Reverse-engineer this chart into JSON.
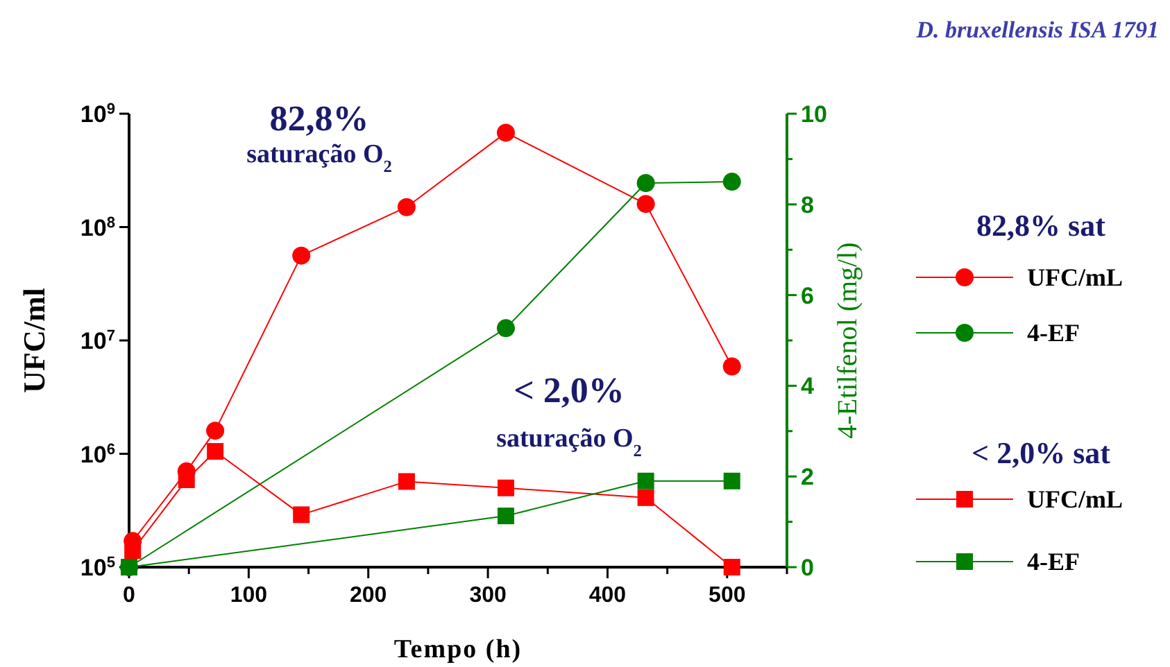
{
  "chart_data": {
    "type": "line",
    "title": "D. bruxellensis ISA 1791",
    "xlabel": "Tempo (h)",
    "ylabel": "UFC/ml",
    "y2label": "4-Etilfenol (mg/l)",
    "xlim": [
      0,
      550
    ],
    "xticks": [
      0,
      {
        "value": 50,
        "label": null
      },
      100,
      {
        "value": 150,
        "label": null
      },
      200,
      {
        "value": 250,
        "label": null
      },
      300,
      {
        "value": 350,
        "label": null
      },
      400,
      {
        "value": 450,
        "label": null
      },
      500,
      {
        "value": 550,
        "label": null
      }
    ],
    "log": "y",
    "ylim": [
      100000,
      1000000000
    ],
    "yticks": [
      {
        "value": 100000,
        "label": "10$^{5}$"
      },
      {
        "value": 1000000,
        "label": "10$^{6}$"
      },
      {
        "value": 10000000,
        "label": "10$^{7}$"
      },
      {
        "value": 100000000,
        "label": "10$^{8}$"
      },
      {
        "value": 1000000000,
        "label": "10$^{9}$"
      }
    ],
    "y2lim": [
      0,
      10
    ],
    "y2ticks": [
      0,
      {
        "value": 1,
        "label": null
      },
      2,
      {
        "value": 3,
        "label": null
      },
      4,
      {
        "value": 5,
        "label": null
      },
      6,
      {
        "value": 7,
        "label": null
      },
      8,
      {
        "value": 9,
        "label": null
      },
      10
    ],
    "legend": "right",
    "grid": false,
    "series": [
      {
        "name": "UFC/mL",
        "color": "#ff0000",
        "marker": "circle",
        "x": [
          3,
          48,
          72,
          144,
          232,
          315,
          432,
          504
        ],
        "values": [
          170000,
          700000,
          1600000,
          56000000,
          150000000,
          680000000,
          160000000,
          5900000
        ]
      },
      {
        "name": "4-EF",
        "color": "#008000",
        "marker": "circle",
        "axis": "y2",
        "x": [
          0,
          315,
          432,
          504
        ],
        "values": [
          0,
          5.27,
          8.47,
          8.5
        ]
      },
      {
        "name": "UFC/mL",
        "color": "#ff0000",
        "marker": "square",
        "x": [
          3,
          48,
          72,
          144,
          232,
          315,
          432,
          504
        ],
        "values": [
          140000,
          590000,
          1050000,
          290000,
          570000,
          500000,
          410000,
          100000
        ]
      },
      {
        "name": "4-EF",
        "color": "#008000",
        "marker": "square",
        "axis": "y2",
        "x": [
          0,
          315,
          432,
          504
        ],
        "values": [
          0,
          1.13,
          1.9,
          1.9
        ]
      }
    ],
    "annotations": [
      "82,8%",
      "saturação O$_{2}$",
      "< 2,0%",
      "saturação O$_{2}$",
      "82,8% sat",
      "< 2,0% sat"
    ]
  }
}
